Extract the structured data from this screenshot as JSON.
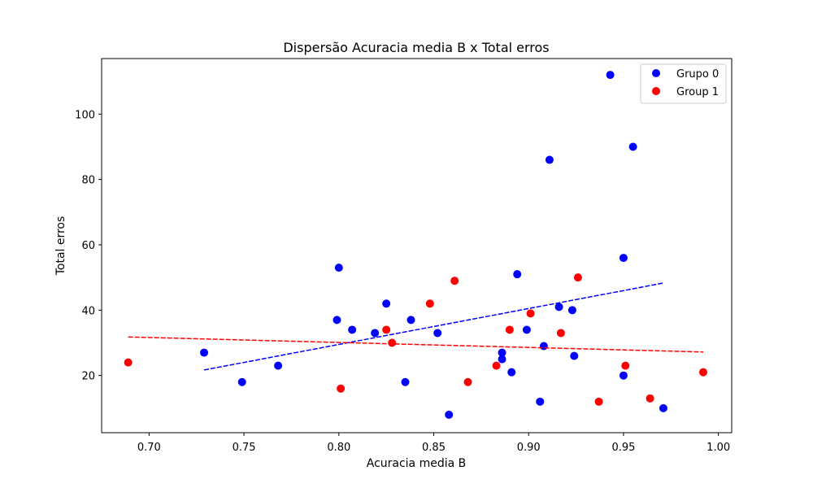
{
  "chart_data": {
    "type": "scatter",
    "title": "Dispersão Acuracia media B x Total erros",
    "xlabel": "Acuracia media B",
    "ylabel": "Total erros",
    "xlim": [
      0.675,
      1.007
    ],
    "ylim": [
      2.5,
      117
    ],
    "xticks": [
      0.7,
      0.75,
      0.8,
      0.85,
      0.9,
      0.95,
      1.0
    ],
    "xtick_labels": [
      "0.70",
      "0.75",
      "0.80",
      "0.85",
      "0.90",
      "0.95",
      "1.00"
    ],
    "yticks": [
      20,
      40,
      60,
      80,
      100
    ],
    "ytick_labels": [
      "20",
      "40",
      "60",
      "80",
      "100"
    ],
    "grid": false,
    "legend_position": "top-right",
    "series": [
      {
        "name": "Grupo 0",
        "color": "#0000ff",
        "points": [
          [
            0.729,
            27
          ],
          [
            0.749,
            18
          ],
          [
            0.768,
            23
          ],
          [
            0.799,
            37
          ],
          [
            0.8,
            53
          ],
          [
            0.807,
            34
          ],
          [
            0.819,
            33
          ],
          [
            0.825,
            42
          ],
          [
            0.835,
            18
          ],
          [
            0.838,
            37
          ],
          [
            0.852,
            33
          ],
          [
            0.858,
            8
          ],
          [
            0.886,
            27
          ],
          [
            0.886,
            25
          ],
          [
            0.891,
            21
          ],
          [
            0.894,
            51
          ],
          [
            0.899,
            34
          ],
          [
            0.906,
            12
          ],
          [
            0.908,
            29
          ],
          [
            0.911,
            86
          ],
          [
            0.916,
            41
          ],
          [
            0.923,
            40
          ],
          [
            0.924,
            26
          ],
          [
            0.943,
            112
          ],
          [
            0.95,
            20
          ],
          [
            0.95,
            56
          ],
          [
            0.955,
            90
          ],
          [
            0.971,
            10
          ]
        ],
        "trend": {
          "x_start": 0.729,
          "y_start": 21.7,
          "x_end": 0.971,
          "y_end": 48.3
        }
      },
      {
        "name": "Group 1",
        "color": "#ff0000",
        "points": [
          [
            0.689,
            24
          ],
          [
            0.801,
            16
          ],
          [
            0.825,
            34
          ],
          [
            0.828,
            30
          ],
          [
            0.848,
            42
          ],
          [
            0.861,
            49
          ],
          [
            0.868,
            18
          ],
          [
            0.883,
            23
          ],
          [
            0.89,
            34
          ],
          [
            0.901,
            39
          ],
          [
            0.917,
            33
          ],
          [
            0.926,
            50
          ],
          [
            0.937,
            12
          ],
          [
            0.951,
            23
          ],
          [
            0.964,
            13
          ],
          [
            0.992,
            21
          ]
        ],
        "trend": {
          "x_start": 0.689,
          "y_start": 31.8,
          "x_end": 0.992,
          "y_end": 27.2
        }
      }
    ]
  }
}
